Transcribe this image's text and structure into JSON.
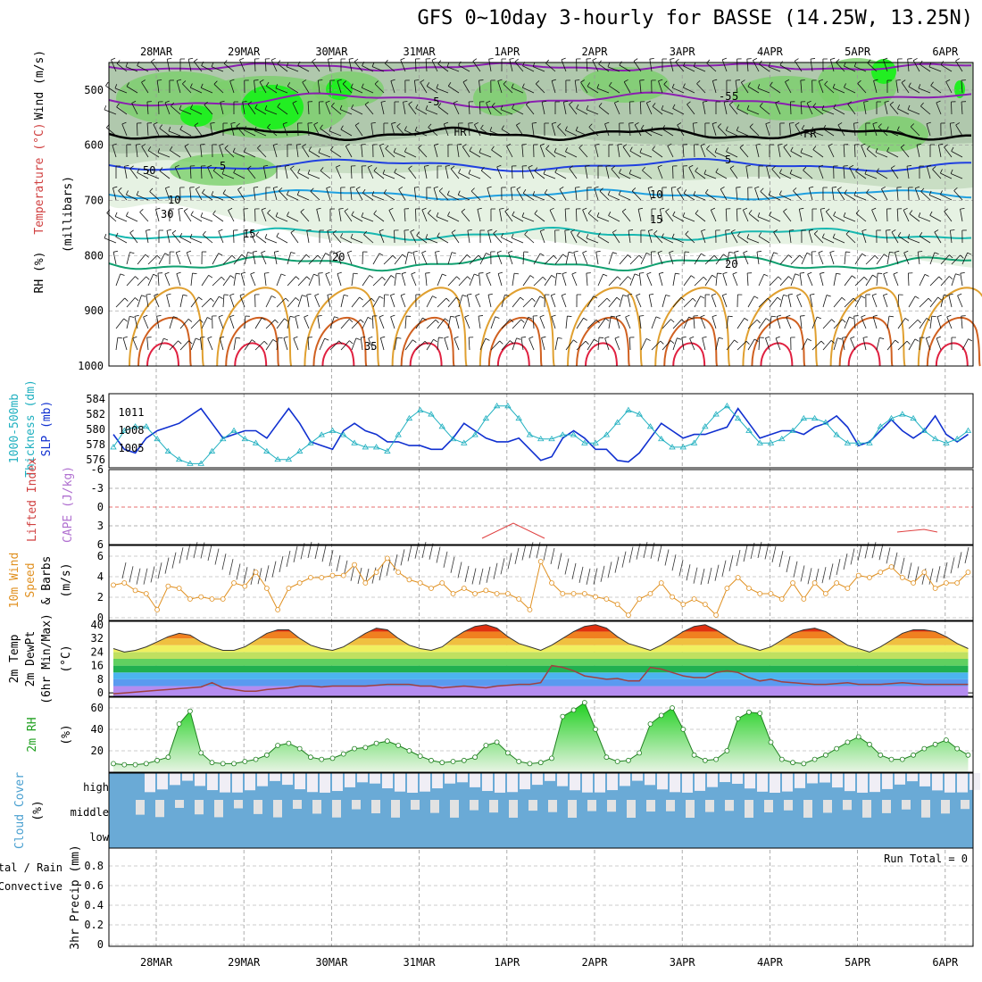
{
  "title": "GFS 0~10day 3-hourly for BASSE (14.25W, 13.25N)",
  "date_labels": [
    "28MAR",
    "29MAR",
    "30MAR",
    "31MAR",
    "1APR",
    "2APR",
    "3APR",
    "4APR",
    "5APR",
    "6APR"
  ],
  "colors": {
    "purple": "#8a1fb0",
    "black": "#000000",
    "blue": "#2040e0",
    "lightblue": "#20a0e0",
    "teal": "#18b8b0",
    "green": "#10a070",
    "orange": "#e0a030",
    "darkorange": "#d06020",
    "red": "#e02040",
    "rh_fill": "#7acf6a",
    "rh_bright": "#22ee22",
    "slp": "#1030d0",
    "thickness": "#20b0c0",
    "wind10": "#e09020",
    "cloud": "#6aaad6",
    "grid": "#999999"
  },
  "panels": {
    "upper": {
      "ylabel": "(millibars)",
      "side_labels": [
        "RH (%)",
        "Temperature (°C)",
        "Wind (m/s)"
      ],
      "ticks": [
        "500",
        "600",
        "700",
        "800",
        "900",
        "1000"
      ],
      "contour_labels": [
        "5",
        "-5",
        "FR",
        "-5",
        "5",
        "10",
        "15",
        "20",
        "-20",
        "35",
        "50",
        "30",
        "FR",
        "5",
        "10",
        "15",
        "20"
      ]
    },
    "slp": {
      "side_labels": [
        "1000-500mb",
        "Thickness (dm)",
        "SLP (mb)"
      ],
      "left_ticks": [
        "584",
        "582",
        "580",
        "578",
        "576"
      ],
      "right_ticks": [
        "1011",
        "1008",
        "1005"
      ]
    },
    "cape": {
      "side_labels": [
        "Lifted Index",
        "CAPE (J/kg)"
      ],
      "ticks": [
        "-6",
        "-3",
        "0",
        "3",
        "6"
      ]
    },
    "wind10": {
      "side_labels": [
        "10m Wind",
        "Speed",
        "& Barbs",
        "(m/s)"
      ],
      "ticks": [
        "6",
        "4",
        "2",
        "0"
      ]
    },
    "temp2m": {
      "side_labels": [
        "2m Temp",
        "2m DewPt",
        "(6hr Min/Max)",
        "(°C)"
      ],
      "ticks": [
        "40",
        "32",
        "24",
        "16",
        "8",
        "0"
      ]
    },
    "rh2m": {
      "side_labels": [
        "2m RH",
        "(%)"
      ],
      "ticks": [
        "60",
        "40",
        "20"
      ]
    },
    "cloud": {
      "side_labels": [
        "Cloud Cover",
        "(%)"
      ],
      "levels": [
        "high",
        "middle",
        "low"
      ]
    },
    "precip": {
      "side_labels": [
        "Total / Rain",
        "Convective",
        "3hr Precip (mm)"
      ],
      "ticks": [
        "0.8",
        "0.6",
        "0.4",
        "0.2",
        "0"
      ],
      "run_total": "Run Total = 0"
    }
  },
  "chart_data": [
    {
      "type": "line",
      "name": "slp",
      "unit": "mb",
      "ylim": [
        1003,
        1013
      ],
      "x_days": [
        0,
        0.125,
        0.25,
        0.375,
        0.5,
        0.625,
        0.75,
        0.875,
        1,
        1.125,
        1.25,
        1.375,
        1.5,
        1.625,
        1.75,
        1.875,
        2,
        2.125,
        2.25,
        2.375,
        2.5,
        2.625,
        2.75,
        2.875,
        3,
        3.125,
        3.25,
        3.375,
        3.5,
        3.625,
        3.75,
        3.875,
        4,
        4.125,
        4.25,
        4.375,
        4.5,
        4.625,
        4.75,
        4.875,
        5,
        5.125,
        5.25,
        5.375,
        5.5,
        5.625,
        5.75,
        5.875,
        6,
        6.125,
        6.25,
        6.375,
        6.5,
        6.625,
        6.75,
        6.875,
        7,
        7.125,
        7.25,
        7.375,
        7.5,
        7.625,
        7.75,
        7.875,
        8,
        8.125,
        8.25,
        8.375,
        8.5,
        8.625,
        8.75,
        8.875,
        9,
        9.125,
        9.25,
        9.375,
        9.5,
        9.625,
        9.75
      ],
      "values": [
        1007.5,
        1005.5,
        1005,
        1007,
        1008,
        1008.5,
        1009,
        1010,
        1011,
        1009,
        1007,
        1007.5,
        1008,
        1008,
        1007,
        1009,
        1011,
        1009,
        1006.5,
        1006,
        1005.5,
        1008,
        1009,
        1008,
        1007.5,
        1006.5,
        1006.5,
        1006,
        1006,
        1005.5,
        1005.5,
        1007,
        1009,
        1008,
        1007,
        1006.5,
        1006.5,
        1007,
        1005.5,
        1004,
        1004.5,
        1007,
        1008,
        1007,
        1005.5,
        1005.5,
        1004,
        1003.8,
        1005,
        1007,
        1009,
        1008,
        1007,
        1007.5,
        1007.5,
        1008,
        1008.5,
        1011,
        1009,
        1007,
        1007.5,
        1008,
        1008,
        1007.5,
        1008.5,
        1009,
        1010,
        1008.5,
        1006,
        1006.5,
        1008,
        1009.5,
        1008,
        1007,
        1008,
        1010,
        1007.5,
        1006.5,
        1007.5
      ]
    },
    {
      "type": "line",
      "name": "thickness",
      "unit": "dm",
      "ylim": [
        576,
        585
      ],
      "values": [
        578.5,
        580.5,
        581,
        581,
        579.5,
        578,
        577,
        576.5,
        576.5,
        578,
        579.5,
        580.5,
        579.5,
        579,
        578,
        577,
        577,
        578,
        579,
        580,
        580.5,
        580,
        579,
        578.5,
        578.5,
        578,
        580,
        582,
        583,
        582.5,
        581,
        579.5,
        579,
        580,
        582,
        583.5,
        583.5,
        582,
        580,
        579.5,
        579.5,
        580,
        580,
        579,
        579,
        580,
        581.5,
        583,
        582.5,
        581,
        579.5,
        578.5,
        578.5,
        579,
        581,
        582.5,
        583.5,
        582,
        580.5,
        579,
        579,
        579.5,
        580.5,
        582,
        582,
        581.5,
        580,
        579,
        579,
        579,
        581,
        582,
        582.5,
        582,
        580.5,
        579.5,
        579,
        579.5,
        580.5
      ]
    },
    {
      "type": "line",
      "name": "wind10_speed",
      "unit": "m/s",
      "ylim": [
        0,
        7
      ],
      "values": [
        3.3,
        3.5,
        2.8,
        2.5,
        1.0,
        3.2,
        3.0,
        2.0,
        2.2,
        2.0,
        2.0,
        3.5,
        3.2,
        4.5,
        3.0,
        1.0,
        3.0,
        3.5,
        4.0,
        4.0,
        4.2,
        4.2,
        5.2,
        3.5,
        4.5,
        5.8,
        4.5,
        3.8,
        3.5,
        3.0,
        3.5,
        2.5,
        3.0,
        2.5,
        2.8,
        2.5,
        2.5,
        2.0,
        1.0,
        5.5,
        3.5,
        2.5,
        2.5,
        2.5,
        2.2,
        2.0,
        1.5,
        0.5,
        2.0,
        2.5,
        3.5,
        2.2,
        1.5,
        2.0,
        1.5,
        0.5,
        3.0,
        4.0,
        3.0,
        2.5,
        2.5,
        2.0,
        3.5,
        2.0,
        3.5,
        2.5,
        3.5,
        3.0,
        4.2,
        4.0,
        4.5,
        5.0,
        4.0,
        3.5,
        4.5,
        3.0,
        3.5,
        3.5,
        4.5
      ]
    },
    {
      "type": "area",
      "name": "temp2m",
      "unit": "°C",
      "ylim": [
        -2,
        42
      ],
      "values": [
        26,
        24,
        25,
        27,
        30,
        33,
        35,
        34,
        30,
        27,
        25,
        25,
        27,
        31,
        35,
        37,
        37,
        32,
        28,
        26,
        25,
        27,
        31,
        35,
        38,
        37,
        32,
        28,
        26,
        25,
        27,
        32,
        36,
        39,
        40,
        38,
        33,
        29,
        27,
        25,
        28,
        32,
        36,
        39,
        40,
        38,
        33,
        29,
        27,
        25,
        28,
        32,
        36,
        39,
        40,
        37,
        33,
        29,
        27,
        25,
        27,
        31,
        35,
        37,
        38,
        36,
        32,
        28,
        26,
        24,
        27,
        31,
        35,
        37,
        37,
        36,
        33,
        29,
        26
      ]
    },
    {
      "type": "line",
      "name": "dewpoint2m",
      "unit": "°C",
      "ylim": [
        -2,
        42
      ],
      "values": [
        -0.5,
        0,
        0.5,
        1,
        1.5,
        2,
        2.5,
        3,
        3.5,
        6,
        3,
        2,
        1,
        1,
        2,
        2.5,
        3,
        4,
        4,
        3.5,
        4,
        4,
        4,
        4,
        4.5,
        5,
        5,
        5,
        4,
        4,
        3,
        3.5,
        4,
        3.5,
        3,
        4,
        4.5,
        5,
        5,
        6,
        16,
        15,
        13,
        10,
        9,
        8,
        8.5,
        7,
        7,
        15,
        14,
        12,
        10,
        9,
        9,
        12,
        13,
        12,
        9,
        7,
        8,
        6.5,
        6,
        5.5,
        5,
        5,
        5.5,
        6,
        5,
        5,
        5,
        5.5,
        6,
        5.5,
        5,
        5,
        5,
        5,
        5
      ]
    },
    {
      "type": "area",
      "name": "rh2m",
      "unit": "%",
      "ylim": [
        0,
        70
      ],
      "values": [
        8,
        7,
        7,
        8,
        11,
        14,
        45,
        57,
        18,
        9,
        8,
        8,
        10,
        12,
        16,
        25,
        27,
        22,
        14,
        12,
        13,
        17,
        22,
        23,
        27,
        29,
        25,
        20,
        15,
        11,
        9,
        10,
        11,
        14,
        25,
        28,
        18,
        10,
        8,
        9,
        13,
        52,
        58,
        65,
        40,
        14,
        10,
        11,
        18,
        45,
        53,
        60,
        40,
        16,
        11,
        12,
        20,
        50,
        56,
        55,
        28,
        12,
        9,
        8,
        12,
        16,
        22,
        28,
        33,
        26,
        16,
        12,
        12,
        16,
        22,
        26,
        30,
        22,
        16
      ]
    },
    {
      "type": "line",
      "name": "precip",
      "unit": "mm",
      "ylim": [
        0,
        0.9
      ],
      "values": []
    }
  ]
}
